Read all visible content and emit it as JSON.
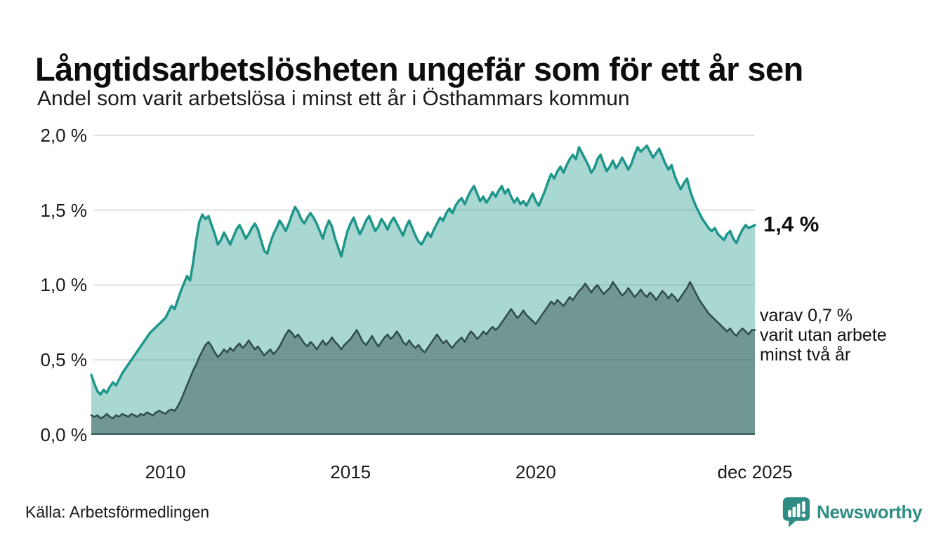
{
  "header": {
    "title": "Långtidsarbetslösheten ungefär som för ett år sen",
    "subtitle": "Andel som varit arbetslösa i minst ett år i Östhammars kommun"
  },
  "annotations": {
    "latest_value": "1,4 %",
    "secondary": [
      "varav 0,7 %",
      "varit utan arbete",
      "minst två år"
    ]
  },
  "footer": {
    "source": "Källa: Arbetsförmedlingen",
    "brand": "Newsworthy"
  },
  "colors": {
    "long_term_line": "#1e968a",
    "long_term_fill": "rgba(23,147,134,0.37)",
    "very_long_term_line": "#2e4d49",
    "very_long_term_fill": "rgba(46,77,73,0.46)",
    "gridline": "#d9d9d9",
    "baseline": "#2e4d49",
    "brand_teal": "#2f8c84"
  },
  "icons": {
    "brand": "newsworthy-speech-bubble-bar-chart-icon"
  },
  "chart_data": {
    "type": "area",
    "title": "Långtidsarbetslösheten ungefär som för ett år sen",
    "subtitle": "Andel som varit arbetslösa i minst ett år i Östhammars kommun",
    "unit": "%",
    "x_start": "2008-01",
    "x_end": "2025-12",
    "points_per_year": 12,
    "ylim": [
      0,
      2.0
    ],
    "grid": "horizontal",
    "y_ticks": [
      {
        "label": "2,0 %",
        "value": 2.0
      },
      {
        "label": "1,5 %",
        "value": 1.5
      },
      {
        "label": "1,0 %",
        "value": 1.0
      },
      {
        "label": "0,5 %",
        "value": 0.5
      },
      {
        "label": "0,0 %",
        "value": 0.0
      }
    ],
    "x_ticks": [
      {
        "label": "2010",
        "month_index": 24
      },
      {
        "label": "2015",
        "month_index": 84
      },
      {
        "label": "2020",
        "month_index": 144
      },
      {
        "label": "dec 2025",
        "month_index": 215
      }
    ],
    "latest": {
      "long_term": 1.4,
      "very_long_term": 0.7
    },
    "series": [
      {
        "name": "Andel arbetslösa minst ett år",
        "latest_label": "1,4 %",
        "values": [
          0.4,
          0.34,
          0.29,
          0.27,
          0.3,
          0.28,
          0.32,
          0.35,
          0.33,
          0.37,
          0.41,
          0.44,
          0.47,
          0.5,
          0.53,
          0.56,
          0.59,
          0.62,
          0.65,
          0.68,
          0.7,
          0.72,
          0.74,
          0.76,
          0.78,
          0.82,
          0.86,
          0.84,
          0.9,
          0.96,
          1.01,
          1.06,
          1.03,
          1.15,
          1.3,
          1.42,
          1.47,
          1.44,
          1.46,
          1.4,
          1.34,
          1.27,
          1.3,
          1.35,
          1.31,
          1.27,
          1.32,
          1.37,
          1.4,
          1.36,
          1.31,
          1.34,
          1.38,
          1.41,
          1.37,
          1.3,
          1.23,
          1.21,
          1.28,
          1.34,
          1.38,
          1.43,
          1.4,
          1.36,
          1.41,
          1.47,
          1.52,
          1.49,
          1.44,
          1.41,
          1.45,
          1.48,
          1.45,
          1.41,
          1.36,
          1.31,
          1.38,
          1.43,
          1.39,
          1.31,
          1.25,
          1.19,
          1.28,
          1.36,
          1.41,
          1.45,
          1.39,
          1.34,
          1.38,
          1.43,
          1.46,
          1.41,
          1.36,
          1.39,
          1.44,
          1.41,
          1.37,
          1.42,
          1.45,
          1.41,
          1.37,
          1.33,
          1.39,
          1.43,
          1.38,
          1.33,
          1.29,
          1.27,
          1.31,
          1.35,
          1.32,
          1.37,
          1.41,
          1.45,
          1.43,
          1.48,
          1.51,
          1.48,
          1.53,
          1.56,
          1.58,
          1.54,
          1.59,
          1.63,
          1.66,
          1.61,
          1.56,
          1.59,
          1.55,
          1.58,
          1.62,
          1.59,
          1.63,
          1.66,
          1.61,
          1.64,
          1.59,
          1.55,
          1.58,
          1.54,
          1.56,
          1.53,
          1.57,
          1.61,
          1.56,
          1.53,
          1.58,
          1.63,
          1.69,
          1.74,
          1.71,
          1.76,
          1.79,
          1.75,
          1.8,
          1.84,
          1.87,
          1.84,
          1.92,
          1.88,
          1.84,
          1.8,
          1.75,
          1.78,
          1.84,
          1.87,
          1.81,
          1.76,
          1.79,
          1.83,
          1.78,
          1.81,
          1.85,
          1.81,
          1.77,
          1.81,
          1.87,
          1.92,
          1.89,
          1.91,
          1.93,
          1.89,
          1.85,
          1.88,
          1.91,
          1.86,
          1.81,
          1.77,
          1.8,
          1.73,
          1.68,
          1.64,
          1.68,
          1.71,
          1.63,
          1.57,
          1.52,
          1.48,
          1.44,
          1.41,
          1.38,
          1.36,
          1.38,
          1.34,
          1.32,
          1.3,
          1.34,
          1.36,
          1.31,
          1.28,
          1.33,
          1.37,
          1.4,
          1.38,
          1.39,
          1.4
        ]
      },
      {
        "name": "varav utan arbete minst två år",
        "latest_label": "0,7 %",
        "values": [
          0.13,
          0.12,
          0.13,
          0.11,
          0.12,
          0.14,
          0.12,
          0.11,
          0.13,
          0.12,
          0.14,
          0.13,
          0.12,
          0.14,
          0.13,
          0.12,
          0.14,
          0.13,
          0.15,
          0.14,
          0.13,
          0.15,
          0.16,
          0.15,
          0.14,
          0.16,
          0.17,
          0.16,
          0.19,
          0.23,
          0.28,
          0.33,
          0.38,
          0.43,
          0.47,
          0.52,
          0.56,
          0.6,
          0.62,
          0.59,
          0.55,
          0.52,
          0.54,
          0.57,
          0.55,
          0.58,
          0.56,
          0.59,
          0.61,
          0.58,
          0.6,
          0.63,
          0.6,
          0.57,
          0.59,
          0.56,
          0.53,
          0.55,
          0.57,
          0.54,
          0.56,
          0.59,
          0.63,
          0.67,
          0.7,
          0.68,
          0.65,
          0.67,
          0.64,
          0.61,
          0.59,
          0.62,
          0.6,
          0.57,
          0.6,
          0.63,
          0.6,
          0.62,
          0.65,
          0.62,
          0.6,
          0.57,
          0.6,
          0.62,
          0.64,
          0.67,
          0.7,
          0.66,
          0.62,
          0.6,
          0.63,
          0.66,
          0.62,
          0.59,
          0.62,
          0.65,
          0.67,
          0.64,
          0.66,
          0.69,
          0.66,
          0.62,
          0.6,
          0.63,
          0.6,
          0.58,
          0.6,
          0.57,
          0.55,
          0.58,
          0.61,
          0.64,
          0.67,
          0.64,
          0.61,
          0.63,
          0.6,
          0.58,
          0.61,
          0.63,
          0.65,
          0.62,
          0.66,
          0.69,
          0.67,
          0.64,
          0.66,
          0.69,
          0.67,
          0.7,
          0.72,
          0.7,
          0.72,
          0.75,
          0.78,
          0.81,
          0.84,
          0.81,
          0.78,
          0.8,
          0.83,
          0.8,
          0.78,
          0.76,
          0.74,
          0.77,
          0.8,
          0.83,
          0.86,
          0.89,
          0.87,
          0.9,
          0.88,
          0.86,
          0.89,
          0.92,
          0.9,
          0.93,
          0.96,
          0.98,
          1.01,
          0.98,
          0.95,
          0.98,
          1.0,
          0.97,
          0.94,
          0.96,
          0.98,
          1.02,
          0.99,
          0.96,
          0.93,
          0.95,
          0.98,
          0.95,
          0.92,
          0.94,
          0.97,
          0.94,
          0.92,
          0.95,
          0.93,
          0.9,
          0.93,
          0.96,
          0.94,
          0.91,
          0.94,
          0.92,
          0.89,
          0.92,
          0.95,
          0.98,
          1.02,
          0.98,
          0.94,
          0.9,
          0.87,
          0.84,
          0.81,
          0.79,
          0.77,
          0.75,
          0.73,
          0.71,
          0.69,
          0.71,
          0.68,
          0.66,
          0.69,
          0.71,
          0.69,
          0.67,
          0.7,
          0.7
        ]
      }
    ]
  }
}
